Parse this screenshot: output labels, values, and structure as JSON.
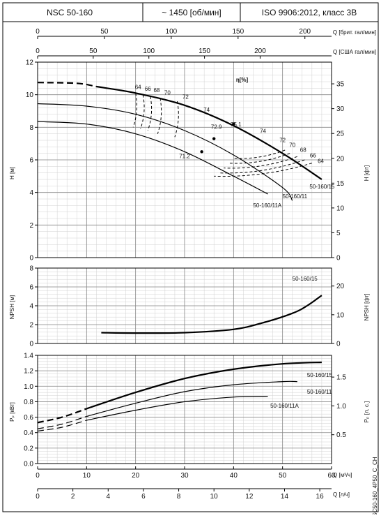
{
  "header": {
    "model": "NSC 50-160",
    "speed": "~ 1450 [об/мин]",
    "standard": "ISO 9906:2012, класс 3B"
  },
  "side_code": "NSC50-160_4P50_C_CH",
  "axes": {
    "q_brit": {
      "label": "Q [брит. гал/мин]",
      "ticks": [
        "0",
        "50",
        "100",
        "150",
        "200"
      ],
      "values": [
        0,
        50,
        100,
        150,
        200
      ]
    },
    "q_us": {
      "label": "Q [США гал/мин]",
      "ticks": [
        "0",
        "50",
        "100",
        "150",
        "200"
      ],
      "values": [
        0,
        50,
        100,
        150,
        200
      ]
    },
    "q_m3h": {
      "label": "Q [м³/ч]",
      "ticks": [
        "0",
        "10",
        "20",
        "30",
        "40",
        "50",
        "60"
      ],
      "values": [
        0,
        10,
        20,
        30,
        40,
        50,
        60
      ]
    },
    "q_ls": {
      "label": "Q [л/ч]",
      "ticks": [
        "0",
        "2",
        "4",
        "6",
        "8",
        "10",
        "12",
        "14",
        "16"
      ],
      "values": [
        0,
        2,
        4,
        6,
        8,
        10,
        12,
        14,
        16
      ]
    }
  },
  "chart_data": [
    {
      "type": "line",
      "panel": "head",
      "ylabel": "H [м]",
      "ylabel_right": "H [фт]",
      "ylim": [
        0,
        12
      ],
      "yticks": [
        "0",
        "2",
        "4",
        "6",
        "8",
        "10",
        "12"
      ],
      "yticks_right": [
        "0",
        "5",
        "10",
        "15",
        "20",
        "25",
        "30",
        "35"
      ],
      "series": [
        {
          "name": "50-160/15",
          "x": [
            0,
            8,
            12,
            20,
            30,
            40,
            50,
            58
          ],
          "y": [
            10.75,
            10.7,
            10.5,
            10.1,
            9.35,
            8.1,
            6.4,
            4.8
          ],
          "dashed_until": 10
        },
        {
          "name": "50-160/11",
          "x": [
            0,
            10,
            20,
            30,
            40,
            50,
            52
          ],
          "y": [
            9.45,
            9.3,
            8.8,
            7.8,
            6.3,
            4.3,
            3.5
          ]
        },
        {
          "name": "50-160/11A",
          "x": [
            0,
            10,
            20,
            30,
            40,
            47
          ],
          "y": [
            8.35,
            8.2,
            7.6,
            6.5,
            5.0,
            3.9
          ]
        }
      ],
      "efficiency_label": "η[%]",
      "efficiency_labels": [
        "64",
        "66",
        "68",
        "70",
        "72",
        "74",
        "75.1",
        "74",
        "72.9",
        "72",
        "70",
        "68",
        "66",
        "64",
        "71.2"
      ],
      "curve_labels": [
        "50-160/15",
        "50-160/11",
        "50-160/11A"
      ]
    },
    {
      "type": "line",
      "panel": "npsh",
      "ylabel": "NPSH [м]",
      "ylabel_right": "NPSH [фт]",
      "ylim": [
        0,
        8
      ],
      "yticks": [
        "0",
        "2",
        "4",
        "6",
        "8"
      ],
      "yticks_right": [
        "0",
        "10",
        "20"
      ],
      "series": [
        {
          "name": "50-160/15",
          "x": [
            13,
            20,
            30,
            40,
            46,
            52,
            55,
            58
          ],
          "y": [
            1.15,
            1.1,
            1.15,
            1.5,
            2.2,
            3.2,
            4.0,
            5.1
          ]
        }
      ]
    },
    {
      "type": "line",
      "panel": "power",
      "ylabel": "Pₚ [кВт]",
      "ylabel_right": "Pₚ [л. с.]",
      "ylim": [
        0,
        1.4
      ],
      "yticks": [
        "0.0",
        "0.2",
        "0.4",
        "0.6",
        "0.8",
        "1.0",
        "1.2",
        "1.4"
      ],
      "yticks_right": [
        "0.5",
        "1.0",
        "1.5"
      ],
      "series": [
        {
          "name": "50-160/15",
          "x": [
            0,
            5,
            10,
            20,
            30,
            40,
            50,
            58
          ],
          "y": [
            0.53,
            0.6,
            0.71,
            0.92,
            1.1,
            1.22,
            1.29,
            1.31
          ]
        },
        {
          "name": "50-160/11",
          "x": [
            0,
            5,
            10,
            20,
            30,
            40,
            50,
            53
          ],
          "y": [
            0.45,
            0.51,
            0.61,
            0.78,
            0.93,
            1.02,
            1.06,
            1.06
          ]
        },
        {
          "name": "50-160/11A",
          "x": [
            0,
            5,
            10,
            20,
            30,
            40,
            47
          ],
          "y": [
            0.42,
            0.47,
            0.56,
            0.69,
            0.8,
            0.86,
            0.87
          ]
        }
      ]
    }
  ]
}
